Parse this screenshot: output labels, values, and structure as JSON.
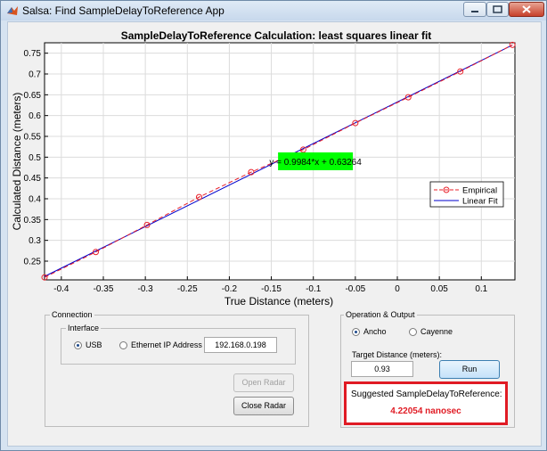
{
  "window": {
    "title": "Salsa: Find SampleDelayToReference App"
  },
  "chart_data": {
    "type": "line",
    "title": "SampleDelayToReference Calculation: least squares linear fit",
    "xlabel": "True Distance (meters)",
    "ylabel": "Calculated Distance (meters)",
    "xlim": [
      -0.42,
      0.14
    ],
    "ylim": [
      0.205,
      0.775
    ],
    "xticks": [
      -0.4,
      -0.35,
      -0.3,
      -0.25,
      -0.2,
      -0.15,
      -0.1,
      -0.05,
      0,
      0.05,
      0.1
    ],
    "xticklabels": [
      "-0.4",
      "-0.35",
      "-0.3",
      "-0.25",
      "-0.2",
      "-0.15",
      "-0.1",
      "-0.05",
      "0",
      "0.05",
      "0.1"
    ],
    "yticks": [
      0.25,
      0.3,
      0.35,
      0.4,
      0.45,
      0.5,
      0.55,
      0.6,
      0.65,
      0.7,
      0.75
    ],
    "yticklabels": [
      "0.25",
      "0.3",
      "0.35",
      "0.4",
      "0.45",
      "0.5",
      "0.55",
      "0.6",
      "0.65",
      "0.7",
      "0.75"
    ],
    "grid": true,
    "legend_position": "right",
    "series": [
      {
        "name": "Empirical",
        "color": "#e8202a",
        "style": "dashed-circle-markers",
        "x": [
          -0.42,
          -0.359,
          -0.298,
          -0.236,
          -0.174,
          -0.112,
          -0.05,
          0.013,
          0.075,
          0.137
        ],
        "y": [
          0.211,
          0.272,
          0.337,
          0.404,
          0.464,
          0.518,
          0.582,
          0.644,
          0.706,
          0.77
        ]
      },
      {
        "name": "Linear Fit",
        "color": "#0000cc",
        "style": "solid",
        "slope": 0.9984,
        "intercept": 0.63264,
        "x": [
          -0.42,
          0.137
        ],
        "y": [
          0.2133,
          0.7694
        ]
      }
    ],
    "annotation": {
      "text": "y = 0.9984*x + 0.63264",
      "x": -0.142,
      "y": 0.49,
      "background": "#00ff00"
    }
  },
  "connection": {
    "title": "Connection",
    "interface_title": "Interface",
    "usb_label": "USB",
    "ethernet_label": "Ethernet IP Address",
    "ip_value": "192.168.0.198",
    "selected": "USB",
    "open_radar_label": "Open Radar",
    "close_radar_label": "Close Radar"
  },
  "operation": {
    "title": "Operation & Output",
    "ancho_label": "Ancho",
    "cayenne_label": "Cayenne",
    "selected": "Ancho",
    "target_label": "Target Distance (meters):",
    "target_value": "0.93",
    "run_label": "Run",
    "suggest_label": "Suggested SampleDelayToReference:",
    "suggest_value": "4.22054 nanosec"
  }
}
